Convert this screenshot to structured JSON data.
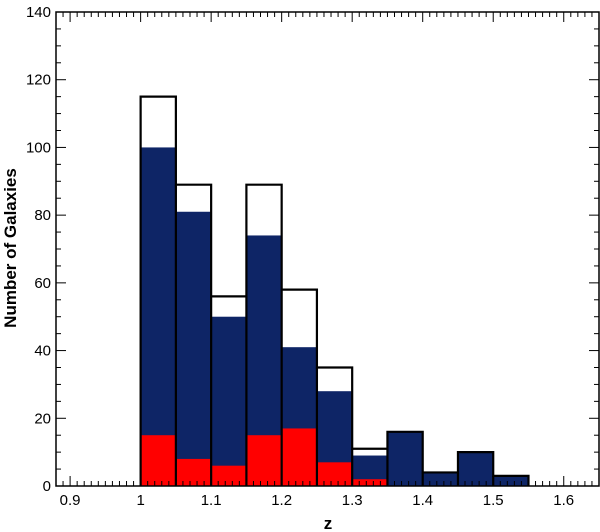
{
  "chart_data": {
    "type": "bar",
    "subtype": "stacked-overlay-histogram",
    "title": "",
    "xlabel": "z",
    "ylabel": "Number of Galaxies",
    "xlim": [
      0.88,
      1.65
    ],
    "ylim": [
      0,
      140
    ],
    "x_ticks": [
      0.9,
      1.0,
      1.1,
      1.2,
      1.3,
      1.4,
      1.5,
      1.6
    ],
    "x_tick_labels": [
      "0.9",
      "1",
      "1.1",
      "1.2",
      "1.3",
      "1.4",
      "1.5",
      "1.6"
    ],
    "y_ticks": [
      0,
      20,
      40,
      60,
      80,
      100,
      120,
      140
    ],
    "y_tick_labels": [
      "0",
      "20",
      "40",
      "60",
      "80",
      "100",
      "120",
      "140"
    ],
    "bin_edges": [
      1.0,
      1.05,
      1.1,
      1.15,
      1.2,
      1.25,
      1.3,
      1.35,
      1.4,
      1.45,
      1.5,
      1.55
    ],
    "grid": false,
    "legend": "none",
    "series": [
      {
        "style": "outline",
        "color": "#000000",
        "values": [
          115,
          89,
          56,
          89,
          58,
          35,
          11,
          16,
          4,
          10,
          3
        ]
      },
      {
        "style": "filled",
        "color": "#0e2566",
        "values": [
          100,
          81,
          50,
          74,
          41,
          28,
          9,
          16,
          4,
          10,
          3
        ]
      },
      {
        "style": "filled",
        "color": "#ff0000",
        "values": [
          15,
          8,
          6,
          15,
          17,
          7,
          2,
          0,
          0,
          0,
          0
        ]
      }
    ]
  }
}
